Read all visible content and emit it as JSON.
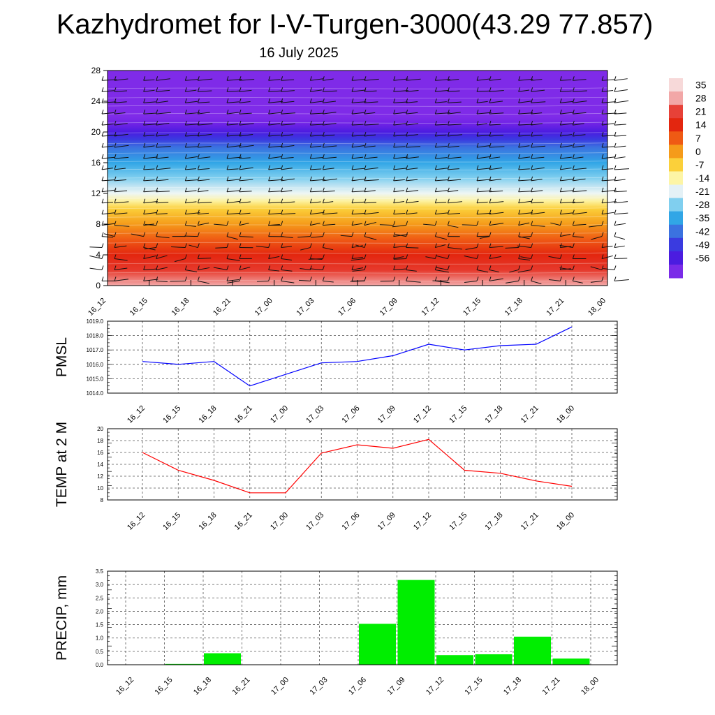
{
  "header": {
    "title": "Kazhydromet for I-V-Turgen-3000(43.29 77.857)",
    "date": "16 July 2025"
  },
  "chart_data": [
    {
      "type": "heatmap",
      "title": "",
      "xlabel": "",
      "ylabel": "",
      "x": [
        "16_12",
        "16_15",
        "16_18",
        "16_21",
        "17_00",
        "17_03",
        "17_06",
        "17_09",
        "17_12",
        "17_15",
        "17_18",
        "17_21",
        "18_00"
      ],
      "y_ticks": [
        0,
        4,
        8,
        12,
        16,
        20,
        24,
        28
      ],
      "ylim": [
        0,
        28
      ],
      "temperature_profile": {
        "levels": [
          0,
          2,
          4,
          6,
          8,
          10,
          11,
          12,
          13,
          14,
          16,
          18,
          19,
          20,
          21,
          22,
          28
        ],
        "values": [
          33,
          26,
          21,
          14,
          7,
          0,
          -7,
          -14,
          -18,
          -21,
          -28,
          -35,
          -42,
          -56,
          -60,
          -63,
          -63
        ]
      },
      "colorbar": {
        "labels": [
          "35",
          "28",
          "21",
          "14",
          "7",
          "0",
          "-7",
          "-14",
          "-21",
          "-28",
          "-35",
          "-42",
          "-49",
          "-56"
        ],
        "colors": [
          "#f7d9d9",
          "#f2a7a7",
          "#e74138",
          "#e3260f",
          "#ef5a14",
          "#f59b1a",
          "#fbd03a",
          "#fdf5a6",
          "#e4f1f6",
          "#80cfef",
          "#31a6e6",
          "#3b72e0",
          "#3a3be0",
          "#4b1ce0",
          "#7a2be8"
        ]
      },
      "wind_barbs": "present",
      "grid": false
    },
    {
      "type": "line",
      "ylabel": "PMSL",
      "x": [
        "16_12",
        "16_15",
        "16_18",
        "16_21",
        "17_00",
        "17_03",
        "17_06",
        "17_09",
        "17_12",
        "17_15",
        "17_18",
        "17_21",
        "18_00"
      ],
      "series": [
        {
          "values": [
            1016.2,
            1016.0,
            1016.2,
            1014.5,
            1015.3,
            1016.1,
            1016.2,
            1016.6,
            1017.4,
            1017.0,
            1017.3,
            1017.4,
            1018.6
          ]
        }
      ],
      "y_ticks": [
        "1014.0",
        "1015.0",
        "1016.0",
        "1017.0",
        "1018.0",
        "1019.0"
      ],
      "ylim": [
        1014,
        1019
      ],
      "color": "#0000ff",
      "grid": true
    },
    {
      "type": "line",
      "ylabel": "TEMP at 2 M",
      "x": [
        "16_12",
        "16_15",
        "16_18",
        "16_21",
        "17_00",
        "17_03",
        "17_06",
        "17_09",
        "17_12",
        "17_15",
        "17_18",
        "17_21",
        "18_00"
      ],
      "series": [
        {
          "values": [
            16.0,
            13.0,
            11.3,
            9.2,
            9.2,
            15.9,
            17.3,
            16.7,
            18.2,
            13.0,
            12.5,
            11.2,
            10.3
          ]
        }
      ],
      "y_ticks": [
        "8",
        "10",
        "12",
        "14",
        "16",
        "18",
        "20"
      ],
      "ylim": [
        8,
        20
      ],
      "color": "#ff0000",
      "grid": true
    },
    {
      "type": "bar",
      "ylabel": "PRECIP, mm",
      "categories": [
        "16_12",
        "16_15",
        "16_18",
        "16_21",
        "17_00",
        "17_03",
        "17_06",
        "17_09",
        "17_12",
        "17_15",
        "17_18",
        "17_21",
        "18_00"
      ],
      "values": [
        0,
        0.03,
        0.43,
        0,
        0,
        0,
        1.53,
        3.17,
        0.36,
        0.39,
        1.05,
        0.23,
        0
      ],
      "y_ticks": [
        "0.0",
        "0.5",
        "1.0",
        "1.5",
        "2.0",
        "2.5",
        "3.0",
        "3.5"
      ],
      "ylim": [
        0,
        3.5
      ],
      "color": "#00ee00",
      "grid": true
    }
  ]
}
